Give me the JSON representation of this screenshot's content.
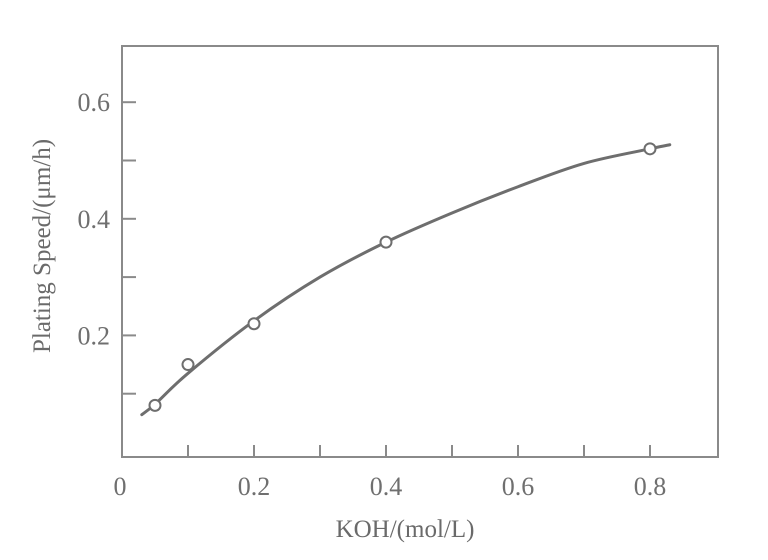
{
  "chart_data": {
    "type": "line",
    "title": "",
    "xlabel": "KOH/(mol/L)",
    "ylabel": "Plating Speed/(μm/h)",
    "xlim": [
      0,
      0.9
    ],
    "ylim": [
      0,
      0.7
    ],
    "grid": false,
    "legend": null,
    "x_ticks": [
      0,
      0.1,
      0.2,
      0.3,
      0.4,
      0.5,
      0.6,
      0.7,
      0.8
    ],
    "x_tick_labels": [
      "0",
      "",
      "0.2",
      "",
      "0.4",
      "",
      "0.6",
      "",
      "0.8"
    ],
    "y_ticks": [
      0.1,
      0.2,
      0.3,
      0.4,
      0.5,
      0.6
    ],
    "y_tick_labels": [
      "",
      "0.2",
      "",
      "0.4",
      "",
      "0.6"
    ],
    "series": [
      {
        "name": "Plating Speed",
        "marker": "open-circle",
        "x": [
          0.05,
          0.1,
          0.2,
          0.4,
          0.8
        ],
        "y": [
          0.08,
          0.15,
          0.22,
          0.36,
          0.52
        ]
      }
    ],
    "fit_curve": {
      "style": "smooth",
      "x": [
        0.03,
        0.05,
        0.1,
        0.2,
        0.3,
        0.4,
        0.5,
        0.6,
        0.7,
        0.8,
        0.83
      ],
      "y": [
        0.064,
        0.082,
        0.135,
        0.225,
        0.3,
        0.36,
        0.41,
        0.455,
        0.495,
        0.52,
        0.527
      ]
    }
  },
  "colors": {
    "axis": "#8a8a8a",
    "curve": "#6e6e6e",
    "text": "#6f6f6f",
    "background": "#ffffff"
  }
}
